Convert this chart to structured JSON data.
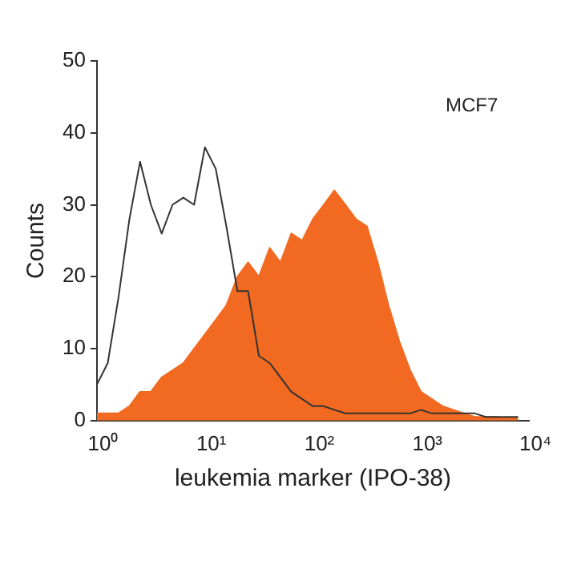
{
  "chart_data": {
    "type": "line",
    "xlabel": "leukemia marker (IPO-38)",
    "ylabel": "Counts",
    "log": "x",
    "grid": false,
    "legend": false,
    "marker": "none",
    "x": [
      1,
      1.26,
      1.58,
      2,
      2.51,
      3.16,
      3.98,
      5.01,
      6.31,
      7.94,
      10,
      12.6,
      15.8,
      20,
      25.1,
      31.6,
      39.8,
      50.1,
      63.1,
      79.4,
      100,
      126,
      158,
      200,
      251,
      316,
      398,
      501,
      631,
      794,
      1000,
      1259,
      1585,
      1995,
      2512,
      3162,
      3981,
      5012,
      6310,
      7943
    ],
    "series": [
      {
        "type": "area",
        "color": "#f26a21",
        "values": [
          1,
          1,
          1,
          2,
          4,
          4,
          6,
          7,
          8,
          10,
          12,
          14,
          16,
          20,
          22,
          20,
          24,
          22,
          26,
          25,
          28,
          30,
          32,
          30,
          28,
          27,
          22,
          16,
          11,
          7,
          4,
          3,
          2,
          1.5,
          1,
          0.5,
          0.5,
          0.5,
          0.3,
          0.3
        ]
      },
      {
        "color": "#333333",
        "values": [
          5,
          8,
          17,
          28,
          36,
          30,
          26,
          30,
          31,
          30,
          38,
          35,
          27,
          18,
          18,
          9,
          8,
          6,
          4,
          3,
          2,
          2,
          1.5,
          1,
          1,
          1,
          1,
          1,
          1,
          1,
          1.5,
          1,
          1,
          1,
          1,
          1,
          0.5,
          0.5,
          0.5,
          0.5
        ]
      }
    ],
    "xlim": [
      1,
      10000
    ],
    "xticks": [
      {
        "value": 1,
        "label": "10⁰"
      },
      {
        "value": 10,
        "label": "10¹"
      },
      {
        "value": 100,
        "label": "10²"
      },
      {
        "value": 1000,
        "label": "10³"
      },
      {
        "value": 10000,
        "label": "10⁴"
      }
    ],
    "ylim": [
      0,
      50
    ],
    "yticks": [
      0,
      10,
      20,
      30,
      40,
      50
    ],
    "annotations": [
      "MCF7"
    ]
  }
}
